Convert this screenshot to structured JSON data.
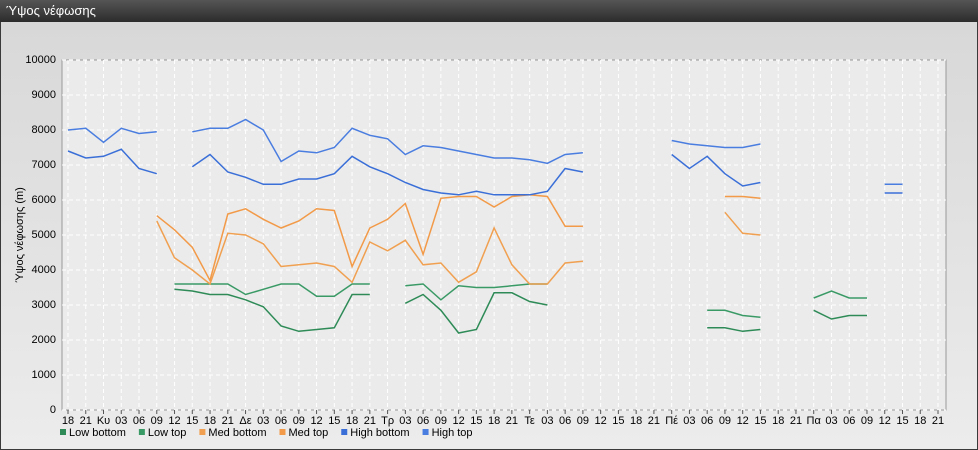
{
  "window_title": "Ύψος νέφωσης",
  "chart_data": {
    "type": "line",
    "ylabel": "Ύψος νέφωσης (m)",
    "categories": [
      "18",
      "21",
      "Κυ",
      "03",
      "06",
      "09",
      "12",
      "15",
      "18",
      "21",
      "Δε",
      "03",
      "06",
      "09",
      "12",
      "15",
      "18",
      "21",
      "Τρ",
      "03",
      "06",
      "09",
      "12",
      "15",
      "18",
      "21",
      "Τε",
      "03",
      "06",
      "09",
      "12",
      "15",
      "18",
      "21",
      "Πέ",
      "03",
      "06",
      "09",
      "12",
      "15",
      "18",
      "21",
      "Πα",
      "03",
      "06",
      "09",
      "12",
      "15",
      "18",
      "21"
    ],
    "ylim": [
      0,
      10000
    ],
    "yticks": [
      0,
      1000,
      2000,
      3000,
      4000,
      5000,
      6000,
      7000,
      8000,
      9000,
      10000
    ],
    "grid": true,
    "legend": "bottom",
    "series": [
      {
        "name": "Low bottom",
        "color": "#2e8b57",
        "values": [
          null,
          null,
          null,
          null,
          null,
          null,
          3450,
          3400,
          3300,
          3300,
          3150,
          2950,
          2400,
          2250,
          2300,
          2350,
          3300,
          3300,
          null,
          3050,
          3300,
          2850,
          2200,
          2300,
          3350,
          3350,
          3100,
          3000,
          null,
          null,
          null,
          null,
          null,
          null,
          null,
          null,
          2350,
          2350,
          2250,
          2300,
          null,
          null,
          2850,
          2600,
          2700,
          2700,
          null,
          null,
          null,
          null
        ]
      },
      {
        "name": "Low top",
        "color": "#3a9a66",
        "values": [
          null,
          null,
          null,
          null,
          null,
          null,
          3600,
          3600,
          3600,
          3600,
          3300,
          3450,
          3600,
          3600,
          3250,
          3250,
          3600,
          3600,
          null,
          3550,
          3600,
          3150,
          3550,
          3500,
          3500,
          3550,
          3600,
          3600,
          null,
          null,
          null,
          null,
          null,
          null,
          null,
          null,
          2850,
          2850,
          2700,
          2650,
          null,
          null,
          3200,
          3400,
          3200,
          3200,
          null,
          null,
          null,
          null
        ]
      },
      {
        "name": "Med bottom",
        "color": "#f0a050",
        "values": [
          null,
          null,
          null,
          null,
          null,
          5400,
          4350,
          4000,
          3600,
          5050,
          5000,
          4750,
          4100,
          4150,
          4200,
          4100,
          3650,
          4800,
          4550,
          4850,
          4150,
          4200,
          3650,
          3950,
          5200,
          4150,
          3600,
          3600,
          4200,
          4250,
          null,
          null,
          null,
          null,
          null,
          null,
          null,
          5650,
          5050,
          5000,
          null,
          null,
          null,
          null,
          null,
          null,
          null,
          null,
          null,
          null
        ]
      },
      {
        "name": "Med top",
        "color": "#f29a48",
        "values": [
          null,
          null,
          null,
          null,
          null,
          5550,
          5150,
          4650,
          3700,
          5600,
          5750,
          5450,
          5200,
          5400,
          5750,
          5700,
          4100,
          5200,
          5450,
          5900,
          4450,
          6050,
          6100,
          6100,
          5800,
          6100,
          6150,
          6100,
          5250,
          5250,
          null,
          null,
          null,
          null,
          null,
          null,
          null,
          6100,
          6100,
          6050,
          null,
          null,
          null,
          null,
          null,
          null,
          null,
          null,
          null,
          null
        ]
      },
      {
        "name": "High bottom",
        "color": "#3a6fd8",
        "values": [
          7400,
          7200,
          7250,
          7450,
          6900,
          6750,
          null,
          6950,
          7300,
          6800,
          6650,
          6450,
          6450,
          6600,
          6600,
          6750,
          7250,
          6950,
          6750,
          6500,
          6300,
          6200,
          6150,
          6250,
          6150,
          6150,
          6150,
          6250,
          6900,
          6800,
          null,
          null,
          null,
          null,
          7300,
          6900,
          7250,
          6750,
          6400,
          6500,
          null,
          null,
          null,
          null,
          null,
          null,
          6200,
          6200,
          null,
          null
        ]
      },
      {
        "name": "High top",
        "color": "#4a7de0",
        "values": [
          8000,
          8050,
          7650,
          8050,
          7900,
          7950,
          null,
          7950,
          8050,
          8050,
          8300,
          8000,
          7100,
          7400,
          7350,
          7500,
          8050,
          7850,
          7750,
          7300,
          7550,
          7500,
          7400,
          7300,
          7200,
          7200,
          7150,
          7050,
          7300,
          7350,
          null,
          null,
          null,
          null,
          7700,
          7600,
          7550,
          7500,
          7500,
          7600,
          null,
          null,
          null,
          null,
          null,
          null,
          6450,
          6450,
          null,
          null
        ]
      }
    ]
  }
}
